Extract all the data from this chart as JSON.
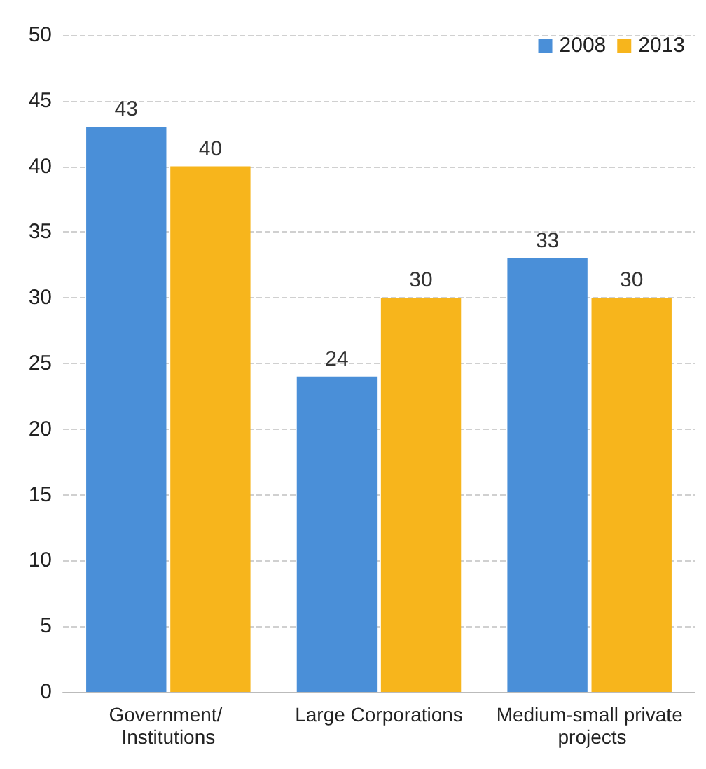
{
  "chart_data": {
    "type": "bar",
    "categories": [
      "Government/ Institutions",
      "Large Corporations",
      "Medium-small private projects"
    ],
    "series": [
      {
        "name": "2008",
        "color": "#4a8fd8",
        "values": [
          43,
          24,
          33
        ]
      },
      {
        "name": "2013",
        "color": "#f7b51c",
        "values": [
          40,
          30,
          30
        ]
      }
    ],
    "ylim": [
      0,
      50
    ],
    "yticks": [
      0,
      5,
      10,
      15,
      20,
      25,
      30,
      35,
      40,
      45,
      50
    ],
    "grid": "y",
    "legend": "top right",
    "data_labels": true
  }
}
